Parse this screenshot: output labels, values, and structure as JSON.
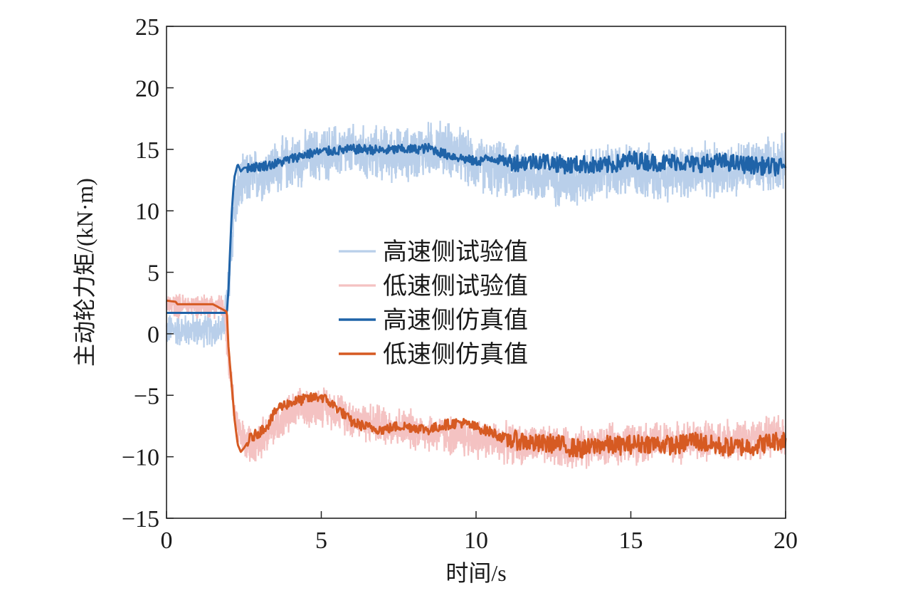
{
  "chart_data": {
    "type": "line",
    "title": "",
    "xlabel": "时间/s",
    "ylabel": "主动轮力矩/(kN·m)",
    "xlim": [
      0,
      20
    ],
    "ylim": [
      -15,
      25
    ],
    "xticks": [
      0,
      5,
      10,
      15,
      20
    ],
    "yticks": [
      -15,
      -10,
      -5,
      0,
      5,
      10,
      15,
      20,
      25
    ],
    "xtick_labels": [
      "0",
      "5",
      "10",
      "15",
      "20"
    ],
    "ytick_labels": [
      "−15",
      "−10",
      "−5",
      "0",
      "5",
      "10",
      "15",
      "20",
      "25"
    ],
    "grid": false,
    "legend_position": "center",
    "series": [
      {
        "name": "高速侧试验值",
        "color": "#b9cfea",
        "style": "noisy",
        "x": [
          0,
          1.8,
          1.9,
          2.0,
          2.1,
          2.2,
          2.4,
          2.6,
          3.0,
          3.5,
          4.0,
          4.5,
          5.0,
          5.5,
          6.0,
          6.5,
          7.0,
          7.5,
          8.0,
          8.5,
          9.0,
          9.5,
          10.0,
          10.5,
          11.0,
          11.5,
          12.0,
          12.5,
          13.0,
          13.5,
          14.0,
          14.5,
          15.0,
          15.5,
          16.0,
          16.5,
          17.0,
          17.5,
          18.0,
          18.5,
          19.0,
          19.5,
          20.0
        ],
        "y": [
          0.3,
          0.3,
          1.5,
          3.5,
          7.0,
          10.5,
          12.0,
          12.5,
          13.0,
          13.5,
          14.0,
          14.3,
          14.6,
          14.8,
          14.8,
          14.6,
          14.7,
          14.5,
          14.7,
          15.0,
          15.2,
          14.5,
          13.8,
          13.5,
          13.2,
          13.0,
          12.8,
          12.7,
          12.5,
          12.8,
          13.0,
          13.2,
          13.3,
          13.2,
          13.0,
          13.1,
          13.3,
          13.2,
          13.3,
          13.5,
          13.6,
          13.8,
          14.0
        ],
        "noise_amplitude": 2.6
      },
      {
        "name": "低速侧试验值",
        "color": "#f4c2c2",
        "style": "noisy",
        "x": [
          0,
          1.8,
          1.9,
          2.0,
          2.1,
          2.2,
          2.4,
          2.6,
          3.0,
          3.5,
          4.0,
          4.5,
          5.0,
          5.5,
          6.0,
          6.5,
          7.0,
          7.5,
          8.0,
          8.5,
          9.0,
          9.5,
          10.0,
          10.5,
          11.0,
          11.5,
          12.0,
          12.5,
          13.0,
          13.5,
          14.0,
          14.5,
          15.0,
          15.5,
          16.0,
          16.5,
          17.0,
          17.5,
          18.0,
          18.5,
          19.0,
          19.5,
          20.0
        ],
        "y": [
          2.3,
          2.3,
          1.0,
          -1.5,
          -4.0,
          -6.5,
          -8.5,
          -9.0,
          -8.5,
          -7.5,
          -6.5,
          -6.0,
          -5.8,
          -6.2,
          -6.8,
          -7.2,
          -7.4,
          -7.6,
          -7.8,
          -8.0,
          -8.2,
          -8.4,
          -8.5,
          -8.7,
          -8.9,
          -9.0,
          -9.1,
          -9.2,
          -9.3,
          -9.2,
          -9.1,
          -9.0,
          -8.9,
          -8.8,
          -8.8,
          -8.8,
          -8.7,
          -8.7,
          -8.6,
          -8.6,
          -8.5,
          -8.4,
          -8.3
        ],
        "noise_amplitude": 1.9
      },
      {
        "name": "高速侧仿真值",
        "color": "#1f63a8",
        "style": "line",
        "x": [
          0,
          1.95,
          2.0,
          2.05,
          2.1,
          2.15,
          2.2,
          2.3,
          2.4,
          2.5,
          3.0,
          3.5,
          4.0,
          4.5,
          5.0,
          5.5,
          6.0,
          6.5,
          7.0,
          7.5,
          8.0,
          8.5,
          9.0,
          9.5,
          10.0,
          10.5,
          11.0,
          11.5,
          12.0,
          12.5,
          13.0,
          13.5,
          14.0,
          14.5,
          15.0,
          15.5,
          16.0,
          16.5,
          17.0,
          17.5,
          18.0,
          18.5,
          19.0,
          19.5,
          20.0
        ],
        "y": [
          1.7,
          1.7,
          3.5,
          6.5,
          9.5,
          11.5,
          12.8,
          13.8,
          13.2,
          13.5,
          13.6,
          13.8,
          14.2,
          14.6,
          14.8,
          14.9,
          15.0,
          15.0,
          14.9,
          15.0,
          15.0,
          15.1,
          14.6,
          14.3,
          14.0,
          14.3,
          14.0,
          13.9,
          14.1,
          13.9,
          13.7,
          13.8,
          13.6,
          13.8,
          14.2,
          14.0,
          13.9,
          14.0,
          13.8,
          13.9,
          14.0,
          13.8,
          13.7,
          13.6,
          13.5
        ],
        "noise_amplitude": 0.55
      },
      {
        "name": "低速侧仿真值",
        "color": "#d65a22",
        "style": "line",
        "x": [
          0,
          0.3,
          0.35,
          1.0,
          1.5,
          1.95,
          2.0,
          2.1,
          2.2,
          2.3,
          2.4,
          2.5,
          2.7,
          3.0,
          3.3,
          3.6,
          4.0,
          4.5,
          5.0,
          5.5,
          6.0,
          6.5,
          7.0,
          7.5,
          8.0,
          8.5,
          9.0,
          9.5,
          10.0,
          10.5,
          11.0,
          11.5,
          12.0,
          12.5,
          13.0,
          13.5,
          14.0,
          14.5,
          15.0,
          15.5,
          16.0,
          16.5,
          17.0,
          17.5,
          18.0,
          18.5,
          19.0,
          19.5,
          20.0
        ],
        "y": [
          2.7,
          2.6,
          2.4,
          2.4,
          2.4,
          1.8,
          -1.0,
          -4.0,
          -7.0,
          -9.0,
          -9.6,
          -9.3,
          -8.5,
          -8.0,
          -7.3,
          -6.0,
          -5.6,
          -5.3,
          -5.1,
          -6.0,
          -7.2,
          -7.6,
          -7.8,
          -7.5,
          -7.6,
          -7.8,
          -7.4,
          -7.2,
          -7.6,
          -8.0,
          -8.6,
          -8.7,
          -9.0,
          -8.9,
          -9.2,
          -9.4,
          -9.0,
          -9.1,
          -9.0,
          -8.9,
          -9.0,
          -9.1,
          -8.6,
          -9.0,
          -9.2,
          -9.2,
          -9.1,
          -8.8,
          -8.6
        ],
        "noise_amplitude": 0.6
      }
    ]
  }
}
